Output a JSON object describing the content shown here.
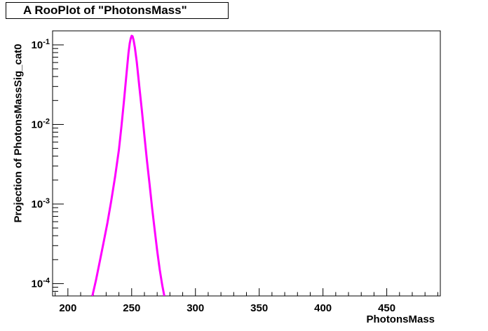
{
  "chart_data": {
    "type": "line",
    "title": "A RooPlot of \"PhotonsMass\"",
    "xlabel": "PhotonsMass",
    "ylabel": "Projection of PhotonsMassSig_cat0",
    "xlim": [
      188,
      492
    ],
    "ylim": [
      7e-05,
      0.15
    ],
    "yscale": "log",
    "x_ticks": [
      200,
      250,
      300,
      350,
      400,
      450
    ],
    "x_tick_labels": [
      "200",
      "250",
      "300",
      "350",
      "400",
      "450"
    ],
    "y_ticks": [
      {
        "value": 0.1,
        "mantissa": "10",
        "exponent": "-1"
      },
      {
        "value": 0.01,
        "mantissa": "10",
        "exponent": "-2"
      },
      {
        "value": 0.001,
        "mantissa": "10",
        "exponent": "-3"
      },
      {
        "value": 0.0001,
        "mantissa": "10",
        "exponent": "-4"
      }
    ],
    "grid": false,
    "series": [
      {
        "color": "#ff00ff",
        "x": [
          219.2,
          222.0,
          225.0,
          228.0,
          231.0,
          234.0,
          237.0,
          240.0,
          242.0,
          244.0,
          246.0,
          247.5,
          248.5,
          249.3,
          250.0,
          250.7,
          251.5,
          252.5,
          254.0,
          256.0,
          258.0,
          260.0,
          262.0,
          264.0,
          266.0,
          268.0,
          270.0,
          272.0,
          274.0,
          275.6
        ],
        "y": [
          7e-05,
          0.00011,
          0.00019,
          0.00033,
          0.00058,
          0.0011,
          0.0022,
          0.0048,
          0.0095,
          0.02,
          0.044,
          0.079,
          0.105,
          0.121,
          0.13,
          0.128,
          0.115,
          0.093,
          0.061,
          0.03,
          0.015,
          0.0072,
          0.0035,
          0.0018,
          0.0009,
          0.00048,
          0.00026,
          0.00015,
          9.5e-05,
          7e-05
        ]
      }
    ]
  }
}
